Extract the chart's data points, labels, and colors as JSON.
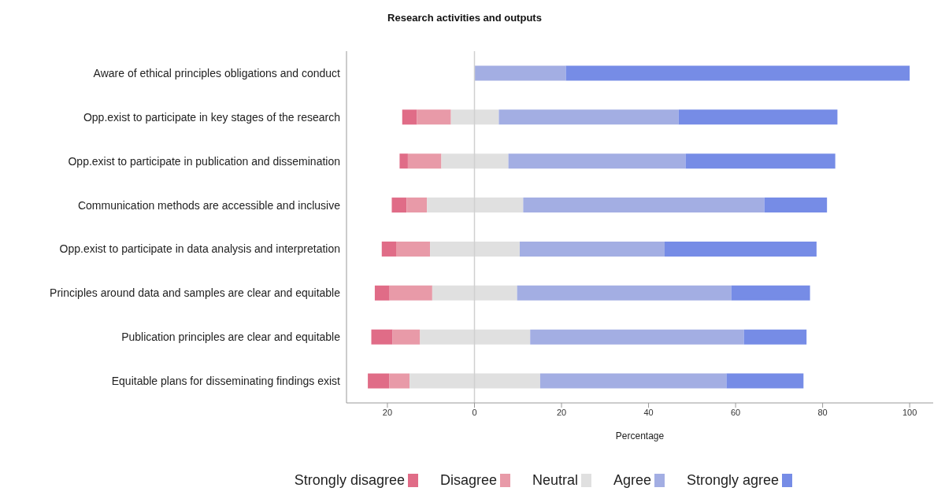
{
  "chart_data": {
    "type": "bar",
    "orientation": "horizontal",
    "title": "Research activities and outputs",
    "xlabel": "Percentage",
    "categories": [
      "Aware of ethical principles obligations and conduct",
      "Opp.exist to participate in key stages of the research",
      "Opp.exist to participate in publication and dissemination",
      "Communication methods are accessible and inclusive",
      "Opp.exist to participate in data analysis and interpretation",
      "Principles around data and samples are clear and equitable",
      "Publication principles are clear and equitable",
      "Equitable plans for disseminating findings exist"
    ],
    "series": [
      {
        "name": "Strongly disagree",
        "color": "#e06c87",
        "base": [
          null,
          -16.6,
          -17.2,
          -19.0,
          -21.3,
          -22.9,
          -23.7,
          -24.5
        ],
        "values": [
          null,
          3.4,
          1.9,
          3.4,
          3.3,
          3.4,
          4.9,
          4.9
        ]
      },
      {
        "name": "Disagree",
        "color": "#e89aa8",
        "base": [
          null,
          -13.2,
          -15.3,
          -15.6,
          -18.0,
          -19.5,
          -18.8,
          -19.6
        ],
        "values": [
          null,
          7.8,
          7.7,
          4.7,
          7.8,
          9.8,
          6.3,
          4.7
        ]
      },
      {
        "name": "Neutral",
        "color": "#e0e0e0",
        "base": [
          null,
          -5.4,
          -7.6,
          -10.9,
          -10.2,
          -9.7,
          -12.5,
          -14.9
        ],
        "values": [
          null,
          11.0,
          15.4,
          22.1,
          20.6,
          19.5,
          25.3,
          30.0
        ]
      },
      {
        "name": "Agree",
        "color": "#a3aee3",
        "base": [
          0,
          5.6,
          7.8,
          11.2,
          10.4,
          9.8,
          12.8,
          15.1
        ],
        "values": [
          21,
          41.3,
          40.7,
          55.4,
          33.3,
          49.2,
          49.1,
          42.8
        ]
      },
      {
        "name": "Strongly agree",
        "color": "#768ce6",
        "base": [
          21,
          46.9,
          48.5,
          66.6,
          43.7,
          59.0,
          61.9,
          57.9
        ],
        "values": [
          79,
          36.5,
          34.4,
          14.4,
          34.9,
          18.1,
          14.4,
          17.7
        ]
      }
    ],
    "xlim": [
      -29.4,
      105.4
    ],
    "xticks": [
      {
        "value": -20,
        "label": "20"
      },
      0,
      20,
      40,
      60,
      80,
      100
    ],
    "ref_lines": [
      {
        "axis": "x",
        "value": 0,
        "color": "#d0d0d0"
      }
    ],
    "legend": "bottom"
  }
}
